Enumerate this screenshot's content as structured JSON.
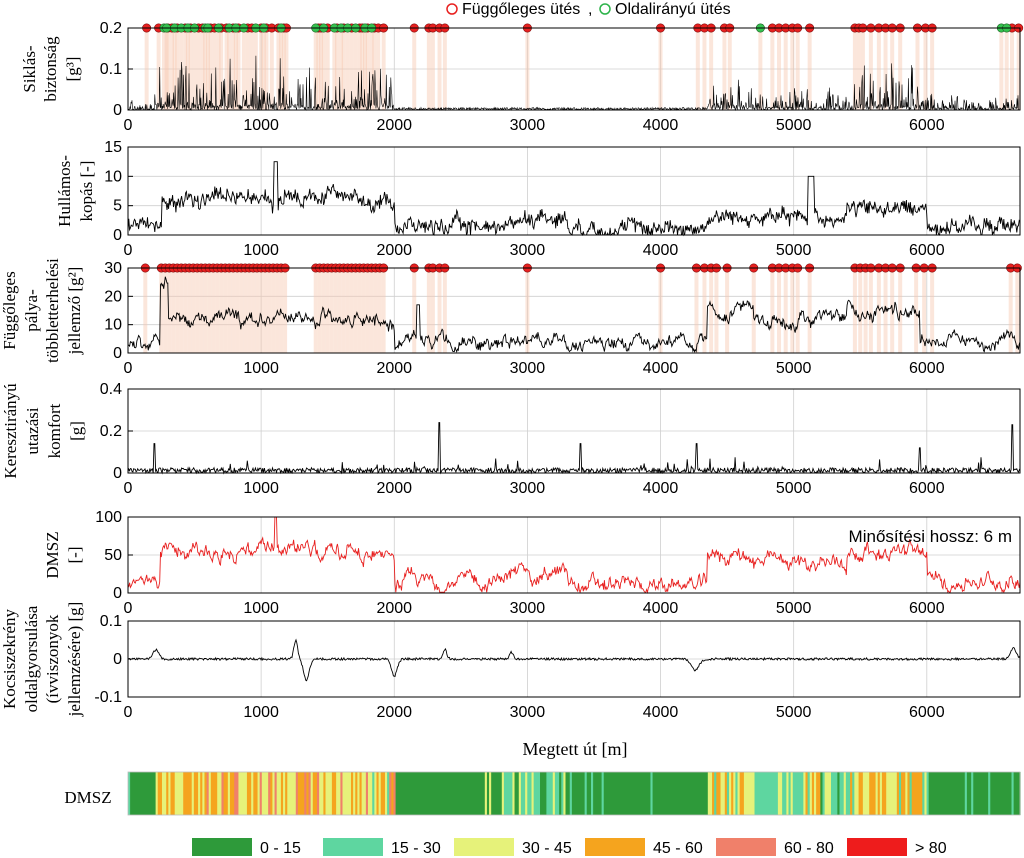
{
  "legend_top": {
    "vertical_label": "Függőleges ütés",
    "separator": ",",
    "lateral_label": "Oldalirányú ütés",
    "vertical_color": "#e8201f",
    "lateral_color": "#2db34a"
  },
  "annotation": "Minősítési hossz: 6 m",
  "xlabel": "Megtett út [m]",
  "dmsz_bar_label": "DMSZ",
  "chart_data": [
    {
      "type": "line",
      "id": "siklas",
      "ylabel_lines": [
        "Siklás-",
        "biztonság",
        "[g³]"
      ],
      "xlim": [
        0,
        6700
      ],
      "ylim": [
        0,
        0.2
      ],
      "yticks": [
        "0",
        "0.1",
        "0.2"
      ],
      "xticks": [
        "0",
        "1000",
        "2000",
        "3000",
        "4000",
        "5000",
        "6000"
      ],
      "line_color": "#000000",
      "grid": true,
      "events_vertical": [
        140,
        230,
        300,
        330,
        370,
        430,
        470,
        530,
        560,
        620,
        650,
        700,
        740,
        790,
        830,
        900,
        930,
        1000,
        1040,
        1080,
        1130,
        1170,
        1190,
        1430,
        1450,
        1500,
        1570,
        1620,
        1680,
        1740,
        1760,
        1800,
        1850,
        1880,
        1920,
        2150,
        2260,
        2290,
        2340,
        2380,
        3000,
        4000,
        4280,
        4330,
        4380,
        4480,
        4520,
        4840,
        4890,
        4940,
        4990,
        5030,
        5120,
        5460,
        5490,
        5520,
        5580,
        5640,
        5690,
        5740,
        5800,
        5930,
        5990,
        6040,
        6640,
        6690
      ],
      "events_lateral": [
        270,
        290,
        350,
        400,
        450,
        500,
        580,
        600,
        680,
        760,
        810,
        870,
        960,
        1020,
        1150,
        1410,
        1470,
        1550,
        1600,
        1650,
        1710,
        1780,
        1830,
        4750,
        6560,
        6600
      ]
    },
    {
      "type": "line",
      "id": "hullamos",
      "ylabel_lines": [
        "Hullámos-",
        "kopás [-]"
      ],
      "xlim": [
        0,
        6700
      ],
      "ylim": [
        0,
        15
      ],
      "yticks": [
        "0",
        "5",
        "10",
        "15"
      ],
      "xticks": [
        "0",
        "1000",
        "2000",
        "3000",
        "4000",
        "5000",
        "6000"
      ],
      "line_color": "#000000",
      "grid": true
    },
    {
      "type": "line",
      "id": "fuggoleges",
      "ylabel_lines": [
        "Függőleges",
        "pálya-",
        "többletterhelési",
        "jellemző [g²]"
      ],
      "xlim": [
        0,
        6700
      ],
      "ylim": [
        0,
        30
      ],
      "yticks": [
        "0",
        "10",
        "20",
        "30"
      ],
      "xticks": [
        "0",
        "1000",
        "2000",
        "3000",
        "4000",
        "5000",
        "6000"
      ],
      "line_color": "#000000",
      "grid": true,
      "events_vertical": [
        130,
        250,
        280,
        310,
        340,
        370,
        400,
        430,
        460,
        490,
        520,
        550,
        580,
        610,
        640,
        670,
        700,
        730,
        760,
        790,
        820,
        850,
        880,
        910,
        940,
        970,
        1000,
        1030,
        1060,
        1090,
        1120,
        1150,
        1180,
        1410,
        1440,
        1470,
        1500,
        1530,
        1560,
        1590,
        1620,
        1650,
        1680,
        1710,
        1740,
        1770,
        1800,
        1830,
        1860,
        1890,
        1920,
        2150,
        2260,
        2290,
        2340,
        2380,
        3000,
        4000,
        4270,
        4330,
        4380,
        4420,
        4500,
        4700,
        4840,
        4890,
        4940,
        4990,
        5030,
        5120,
        5460,
        5500,
        5540,
        5580,
        5640,
        5690,
        5740,
        5800,
        5920,
        5980,
        6040,
        6630,
        6680
      ]
    },
    {
      "type": "line",
      "id": "keresztiranyu",
      "ylabel_lines": [
        "Keresztirányú",
        "utazási",
        "komfort",
        "[g]"
      ],
      "xlim": [
        0,
        6700
      ],
      "ylim": [
        0,
        0.4
      ],
      "yticks": [
        "0",
        "0.2",
        "0.4"
      ],
      "xticks": [
        "0",
        "1000",
        "2000",
        "3000",
        "4000",
        "5000",
        "6000"
      ],
      "line_color": "#000000",
      "grid": true
    },
    {
      "type": "line",
      "id": "dmsz",
      "ylabel_lines": [
        "DMSZ",
        "[-]"
      ],
      "xlim": [
        0,
        6700
      ],
      "ylim": [
        0,
        100
      ],
      "yticks": [
        "0",
        "50",
        "100"
      ],
      "xticks": [
        "0",
        "1000",
        "2000",
        "3000",
        "4000",
        "5000",
        "6000"
      ],
      "line_color": "#e8201f",
      "grid": true
    },
    {
      "type": "line",
      "id": "kocsiszekreny",
      "ylabel_lines": [
        "Kocsiszekrény",
        "oldalgyorsulása",
        "(ívviszonyok",
        "jellemzésére) [g]"
      ],
      "xlim": [
        0,
        6700
      ],
      "ylim": [
        -0.1,
        0.1
      ],
      "yticks": [
        "-0.1",
        "0",
        "0.1"
      ],
      "xticks": [
        "0",
        "1000",
        "2000",
        "3000",
        "4000",
        "5000",
        "6000"
      ],
      "line_color": "#000000",
      "grid": true
    },
    {
      "type": "heatmap",
      "id": "dmsz_strip",
      "xlim": [
        0,
        6700
      ],
      "classes": [
        {
          "label": "0 - 15",
          "color": "#2e9a3a"
        },
        {
          "label": "15 - 30",
          "color": "#5ed6a0"
        },
        {
          "label": "30 - 45",
          "color": "#e6f27a"
        },
        {
          "label": "45 - 60",
          "color": "#f5a41e"
        },
        {
          "label": "60 - 80",
          "color": "#f0806a"
        },
        {
          "label": "> 80",
          "color": "#ee1c1c"
        }
      ]
    }
  ]
}
